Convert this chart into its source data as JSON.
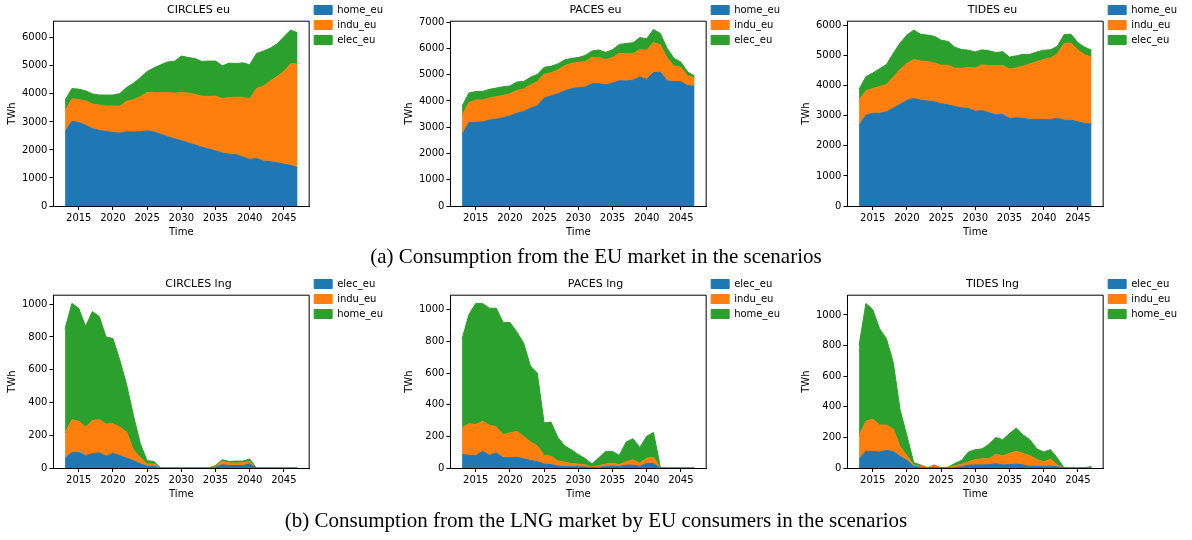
{
  "chart_data": [
    {
      "type": "area",
      "stacked": true,
      "title": "CIRCLES eu",
      "xlabel": "Time",
      "ylabel": "TWh",
      "legend": "top right",
      "grid": false,
      "annotations": [
        "(a) Consumption from the EU market in the scenarios"
      ],
      "x": [
        2013,
        2014,
        2015,
        2016,
        2017,
        2018,
        2019,
        2020,
        2021,
        2022,
        2023,
        2024,
        2025,
        2026,
        2027,
        2028,
        2029,
        2030,
        2031,
        2032,
        2033,
        2034,
        2035,
        2036,
        2037,
        2038,
        2039,
        2040,
        2041,
        2042,
        2043,
        2044,
        2045,
        2046,
        2047
      ],
      "xlim": [
        2011.3,
        2048.7
      ],
      "xticks": [
        2015,
        2020,
        2025,
        2030,
        2035,
        2040,
        2045
      ],
      "ylim": [
        0,
        6594
      ],
      "yticks": [
        0,
        1000,
        2000,
        3000,
        4000,
        5000,
        6000
      ],
      "series": [
        {
          "name": "home_eu",
          "color": "#1f77b4",
          "values": [
            2650,
            3020,
            2980,
            2880,
            2760,
            2700,
            2660,
            2620,
            2600,
            2650,
            2640,
            2650,
            2680,
            2640,
            2560,
            2470,
            2400,
            2330,
            2250,
            2180,
            2100,
            2030,
            1970,
            1890,
            1850,
            1830,
            1750,
            1660,
            1700,
            1600,
            1580,
            1540,
            1490,
            1450,
            1370
          ]
        },
        {
          "name": "indu_eu",
          "color": "#ff7f0e",
          "values": [
            750,
            810,
            810,
            870,
            880,
            900,
            910,
            950,
            960,
            1090,
            1150,
            1250,
            1380,
            1410,
            1480,
            1570,
            1630,
            1710,
            1780,
            1800,
            1820,
            1880,
            1950,
            1940,
            2020,
            2050,
            2130,
            2160,
            2490,
            2680,
            2880,
            3080,
            3310,
            3630,
            3710
          ]
        },
        {
          "name": "elec_eu",
          "color": "#2ca02c",
          "values": [
            380,
            360,
            380,
            360,
            360,
            360,
            390,
            390,
            450,
            490,
            590,
            680,
            740,
            880,
            1000,
            1100,
            1130,
            1310,
            1270,
            1280,
            1240,
            1260,
            1250,
            1170,
            1230,
            1200,
            1230,
            1220,
            1250,
            1250,
            1170,
            1160,
            1240,
            1200,
            1100
          ]
        }
      ]
    },
    {
      "type": "area",
      "stacked": true,
      "title": "PACES eu",
      "xlabel": "Time",
      "ylabel": "TWh",
      "legend": "top right",
      "grid": false,
      "x": [
        2013,
        2014,
        2015,
        2016,
        2017,
        2018,
        2019,
        2020,
        2021,
        2022,
        2023,
        2024,
        2025,
        2026,
        2027,
        2028,
        2029,
        2030,
        2031,
        2032,
        2033,
        2034,
        2035,
        2036,
        2037,
        2038,
        2039,
        2040,
        2041,
        2042,
        2043,
        2044,
        2045,
        2046,
        2047
      ],
      "xlim": [
        2011.3,
        2048.7
      ],
      "xticks": [
        2015,
        2020,
        2025,
        2030,
        2035,
        2040,
        2045
      ],
      "ylim": [
        0,
        7035
      ],
      "yticks": [
        0,
        1000,
        2000,
        3000,
        4000,
        5000,
        6000,
        7000
      ],
      "series": [
        {
          "name": "home_eu",
          "color": "#1f77b4",
          "values": [
            2720,
            3170,
            3190,
            3200,
            3270,
            3310,
            3360,
            3430,
            3530,
            3600,
            3720,
            3820,
            4110,
            4190,
            4270,
            4390,
            4460,
            4510,
            4530,
            4650,
            4660,
            4610,
            4680,
            4770,
            4760,
            4790,
            4910,
            4820,
            5080,
            5090,
            4760,
            4740,
            4730,
            4580,
            4560
          ]
        },
        {
          "name": "indu_eu",
          "color": "#ff7f0e",
          "values": [
            730,
            770,
            840,
            840,
            840,
            850,
            850,
            840,
            870,
            850,
            890,
            910,
            910,
            880,
            910,
            950,
            970,
            950,
            970,
            1000,
            1000,
            960,
            970,
            1040,
            1040,
            1010,
            1050,
            1110,
            1140,
            1050,
            860,
            590,
            550,
            370,
            330
          ]
        },
        {
          "name": "elec_eu",
          "color": "#2ca02c",
          "values": [
            350,
            360,
            330,
            320,
            330,
            330,
            330,
            300,
            320,
            290,
            290,
            280,
            260,
            250,
            230,
            220,
            190,
            190,
            230,
            250,
            280,
            280,
            300,
            340,
            390,
            410,
            450,
            440,
            500,
            430,
            380,
            290,
            200,
            150,
            60
          ]
        }
      ]
    },
    {
      "type": "area",
      "stacked": true,
      "title": "TIDES eu",
      "xlabel": "Time",
      "ylabel": "TWh",
      "legend": "top right",
      "grid": false,
      "x": [
        2013,
        2014,
        2015,
        2016,
        2017,
        2018,
        2019,
        2020,
        2021,
        2022,
        2023,
        2024,
        2025,
        2026,
        2027,
        2028,
        2029,
        2030,
        2031,
        2032,
        2033,
        2034,
        2035,
        2036,
        2037,
        2038,
        2039,
        2040,
        2041,
        2042,
        2043,
        2044,
        2045,
        2046,
        2047
      ],
      "xlim": [
        2011.3,
        2048.7
      ],
      "xticks": [
        2015,
        2020,
        2025,
        2030,
        2035,
        2040,
        2045
      ],
      "ylim": [
        0,
        6142
      ],
      "yticks": [
        0,
        1000,
        2000,
        3000,
        4000,
        5000,
        6000
      ],
      "series": [
        {
          "name": "home_eu",
          "color": "#1f77b4",
          "values": [
            2680,
            3020,
            3080,
            3080,
            3130,
            3250,
            3380,
            3510,
            3570,
            3520,
            3490,
            3460,
            3400,
            3360,
            3310,
            3260,
            3240,
            3150,
            3170,
            3100,
            3030,
            3040,
            2910,
            2930,
            2910,
            2870,
            2880,
            2880,
            2870,
            2920,
            2850,
            2850,
            2800,
            2740,
            2730
          ]
        },
        {
          "name": "indu_eu",
          "color": "#ff7f0e",
          "values": [
            840,
            810,
            820,
            890,
            910,
            1030,
            1160,
            1230,
            1300,
            1300,
            1310,
            1300,
            1280,
            1320,
            1270,
            1320,
            1360,
            1440,
            1520,
            1570,
            1630,
            1630,
            1640,
            1660,
            1740,
            1850,
            1920,
            1990,
            2050,
            2140,
            2550,
            2570,
            2380,
            2290,
            2210
          ]
        },
        {
          "name": "elec_eu",
          "color": "#2ca02c",
          "values": [
            360,
            470,
            520,
            590,
            660,
            790,
            880,
            940,
            980,
            890,
            880,
            880,
            830,
            790,
            700,
            620,
            580,
            530,
            500,
            490,
            440,
            460,
            400,
            400,
            390,
            320,
            320,
            310,
            270,
            250,
            300,
            290,
            250,
            250,
            240
          ]
        }
      ]
    },
    {
      "type": "area",
      "stacked": true,
      "title": "CIRCLES lng",
      "xlabel": "Time",
      "ylabel": "TWh",
      "legend": "top right",
      "grid": false,
      "annotations": [
        "(b) Consumption from the LNG market by EU consumers in the scenarios"
      ],
      "x": [
        2013,
        2014,
        2015,
        2016,
        2017,
        2018,
        2019,
        2020,
        2021,
        2022,
        2023,
        2024,
        2025,
        2026,
        2027,
        2028,
        2029,
        2030,
        2031,
        2032,
        2033,
        2034,
        2035,
        2036,
        2037,
        2038,
        2039,
        2040,
        2041,
        2042,
        2043,
        2044,
        2045,
        2046,
        2047
      ],
      "xlim": [
        2011.3,
        2048.7
      ],
      "xticks": [
        2015,
        2020,
        2025,
        2030,
        2035,
        2040,
        2045
      ],
      "ylim": [
        0,
        1055
      ],
      "yticks": [
        0,
        200,
        400,
        600,
        800,
        1000
      ],
      "series": [
        {
          "name": "elec_eu",
          "color": "#1f77b4",
          "values": [
            60,
            95,
            95,
            75,
            88,
            92,
            72,
            90,
            75,
            60,
            45,
            25,
            10,
            10,
            0,
            0,
            0,
            0,
            0,
            0,
            0,
            0,
            5,
            20,
            15,
            15,
            15,
            25,
            0,
            0,
            0,
            0,
            0,
            0,
            0
          ]
        },
        {
          "name": "indu_eu",
          "color": "#ff7f0e",
          "values": [
            155,
            200,
            190,
            175,
            202,
            203,
            196,
            180,
            175,
            160,
            65,
            40,
            15,
            15,
            0,
            0,
            0,
            0,
            0,
            0,
            0,
            0,
            5,
            20,
            15,
            15,
            17,
            15,
            0,
            0,
            0,
            0,
            0,
            0,
            0
          ]
        },
        {
          "name": "home_eu",
          "color": "#2ca02c",
          "values": [
            635,
            710,
            690,
            615,
            665,
            630,
            532,
            520,
            410,
            290,
            210,
            85,
            20,
            15,
            0,
            0,
            0,
            0,
            0,
            0,
            0,
            0,
            5,
            10,
            10,
            12,
            10,
            15,
            0,
            0,
            0,
            0,
            0,
            0,
            0
          ]
        }
      ]
    },
    {
      "type": "area",
      "stacked": true,
      "title": "PACES lng",
      "xlabel": "Time",
      "ylabel": "TWh",
      "legend": "top right",
      "grid": false,
      "x": [
        2013,
        2014,
        2015,
        2016,
        2017,
        2018,
        2019,
        2020,
        2021,
        2022,
        2023,
        2024,
        2025,
        2026,
        2027,
        2028,
        2029,
        2030,
        2031,
        2032,
        2033,
        2034,
        2035,
        2036,
        2037,
        2038,
        2039,
        2040,
        2041,
        2042,
        2043,
        2044,
        2045,
        2046,
        2047
      ],
      "xlim": [
        2011.3,
        2048.7
      ],
      "xticks": [
        2015,
        2020,
        2025,
        2030,
        2035,
        2040,
        2045
      ],
      "ylim": [
        0,
        1092
      ],
      "yticks": [
        0,
        200,
        400,
        600,
        800,
        1000
      ],
      "series": [
        {
          "name": "elec_eu",
          "color": "#1f77b4",
          "values": [
            85,
            80,
            78,
            105,
            80,
            95,
            65,
            65,
            68,
            58,
            48,
            40,
            25,
            22,
            12,
            10,
            8,
            8,
            6,
            2,
            5,
            8,
            12,
            8,
            18,
            18,
            10,
            30,
            28,
            0,
            0,
            0,
            0,
            0,
            0
          ]
        },
        {
          "name": "indu_eu",
          "color": "#ff7f0e",
          "values": [
            170,
            200,
            197,
            190,
            190,
            165,
            145,
            157,
            162,
            142,
            117,
            100,
            55,
            53,
            33,
            28,
            20,
            17,
            14,
            3,
            10,
            17,
            18,
            14,
            22,
            34,
            20,
            32,
            40,
            2,
            0,
            0,
            0,
            0,
            0
          ]
        },
        {
          "name": "home_eu",
          "color": "#2ca02c",
          "values": [
            560,
            690,
            765,
            745,
            740,
            750,
            710,
            698,
            630,
            590,
            480,
            460,
            205,
            215,
            150,
            102,
            87,
            60,
            40,
            20,
            50,
            80,
            75,
            58,
            125,
            133,
            100,
            138,
            157,
            3,
            0,
            0,
            0,
            0,
            0
          ]
        }
      ]
    },
    {
      "type": "area",
      "stacked": true,
      "title": "TIDES lng",
      "xlabel": "Time",
      "ylabel": "TWh",
      "legend": "top right",
      "grid": false,
      "x": [
        2013,
        2014,
        2015,
        2016,
        2017,
        2018,
        2019,
        2020,
        2021,
        2022,
        2023,
        2024,
        2025,
        2026,
        2027,
        2028,
        2029,
        2030,
        2031,
        2032,
        2033,
        2034,
        2035,
        2036,
        2037,
        2038,
        2039,
        2040,
        2041,
        2042,
        2043,
        2044,
        2045,
        2046,
        2047
      ],
      "xlim": [
        2011.3,
        2048.7
      ],
      "xticks": [
        2015,
        2020,
        2025,
        2030,
        2035,
        2040,
        2045
      ],
      "ylim": [
        0,
        1129
      ],
      "yticks": [
        0,
        200,
        400,
        600,
        800,
        1000
      ],
      "series": [
        {
          "name": "elec_eu",
          "color": "#1f77b4",
          "values": [
            60,
            110,
            108,
            105,
            115,
            108,
            75,
            50,
            10,
            5,
            0,
            3,
            0,
            0,
            3,
            8,
            18,
            20,
            20,
            22,
            28,
            20,
            22,
            25,
            20,
            10,
            12,
            10,
            12,
            8,
            0,
            0,
            0,
            0,
            0
          ]
        },
        {
          "name": "indu_eu",
          "color": "#ff7f0e",
          "values": [
            150,
            195,
            212,
            175,
            165,
            147,
            65,
            30,
            10,
            7,
            2,
            12,
            0,
            2,
            12,
            17,
            22,
            35,
            40,
            38,
            62,
            60,
            73,
            85,
            75,
            70,
            43,
            30,
            46,
            12,
            0,
            0,
            0,
            0,
            2
          ]
        },
        {
          "name": "home_eu",
          "color": "#2ca02c",
          "values": [
            590,
            770,
            715,
            630,
            565,
            435,
            240,
            130,
            15,
            8,
            0,
            5,
            2,
            3,
            15,
            25,
            65,
            65,
            65,
            95,
            110,
            105,
            130,
            152,
            120,
            105,
            70,
            65,
            62,
            45,
            0,
            2,
            2,
            2,
            8
          ]
        }
      ]
    }
  ]
}
